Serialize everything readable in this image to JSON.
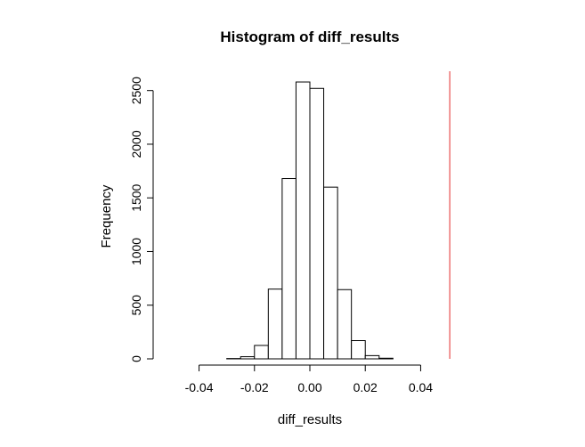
{
  "chart_data": {
    "type": "bar",
    "title": "Histogram of diff_results",
    "xlabel": "diff_results",
    "ylabel": "Frequency",
    "xlim": [
      -0.054,
      0.054
    ],
    "ylim": [
      0,
      2680
    ],
    "x_ticks": [
      -0.04,
      -0.02,
      0.0,
      0.02,
      0.04
    ],
    "x_tick_labels": [
      "-0.04",
      "-0.02",
      "0.00",
      "0.02",
      "0.04"
    ],
    "y_ticks": [
      0,
      500,
      1000,
      1500,
      2000,
      2500
    ],
    "y_tick_labels": [
      "0",
      "500",
      "1000",
      "1500",
      "2000",
      "2500"
    ],
    "bin_width": 0.005,
    "bins": [
      {
        "x0": -0.03,
        "x1": -0.025,
        "count": 3
      },
      {
        "x0": -0.025,
        "x1": -0.02,
        "count": 20
      },
      {
        "x0": -0.02,
        "x1": -0.015,
        "count": 125
      },
      {
        "x0": -0.015,
        "x1": -0.01,
        "count": 650
      },
      {
        "x0": -0.01,
        "x1": -0.005,
        "count": 1680
      },
      {
        "x0": -0.005,
        "x1": 0.0,
        "count": 2580
      },
      {
        "x0": 0.0,
        "x1": 0.005,
        "count": 2520
      },
      {
        "x0": 0.005,
        "x1": 0.01,
        "count": 1600
      },
      {
        "x0": 0.01,
        "x1": 0.015,
        "count": 645
      },
      {
        "x0": 0.015,
        "x1": 0.02,
        "count": 170
      },
      {
        "x0": 0.02,
        "x1": 0.025,
        "count": 30
      },
      {
        "x0": 0.025,
        "x1": 0.03,
        "count": 6
      }
    ],
    "reference_line": {
      "x": 0.0505,
      "color": "#e8504f"
    },
    "bar_fill": "#ffffff",
    "bar_stroke": "#000000"
  }
}
